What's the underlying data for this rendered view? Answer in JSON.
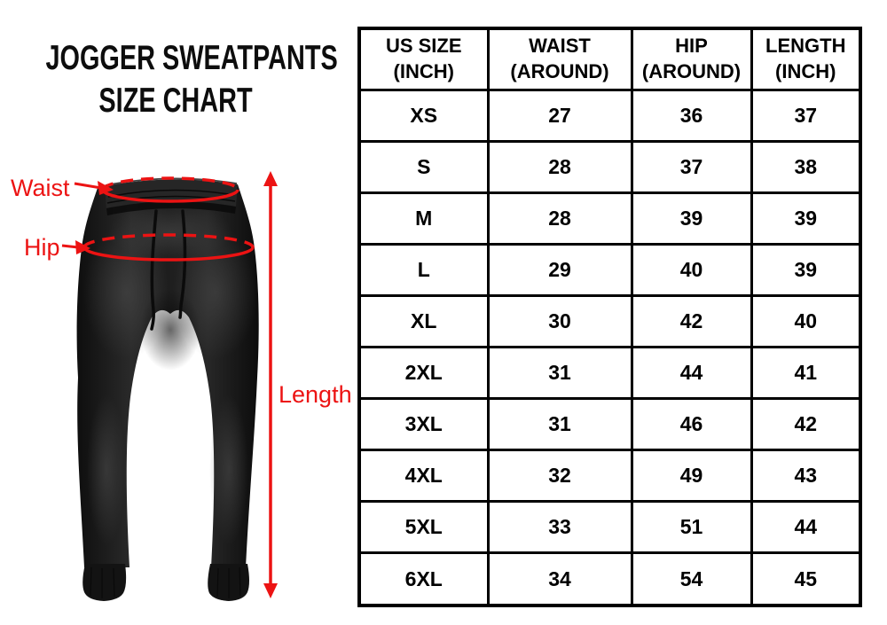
{
  "title": {
    "line1": "JOGGER SWEATPANTS",
    "line2": "SIZE CHART"
  },
  "annotations": {
    "waist_label": "Waist",
    "hip_label": "Hip",
    "length_label": "Length",
    "accent_color": "#ec1313"
  },
  "table": {
    "headers": [
      {
        "line1": "US SIZE",
        "line2": "(INCH)"
      },
      {
        "line1": "WAIST",
        "line2": "(AROUND)"
      },
      {
        "line1": "HIP",
        "line2": "(AROUND)"
      },
      {
        "line1": "LENGTH",
        "line2": "(INCH)"
      }
    ],
    "rows": [
      {
        "size": "XS",
        "waist": "27",
        "hip": "36",
        "length": "37"
      },
      {
        "size": "S",
        "waist": "28",
        "hip": "37",
        "length": "38"
      },
      {
        "size": "M",
        "waist": "28",
        "hip": "39",
        "length": "39"
      },
      {
        "size": "L",
        "waist": "29",
        "hip": "40",
        "length": "39"
      },
      {
        "size": "XL",
        "waist": "30",
        "hip": "42",
        "length": "40"
      },
      {
        "size": "2XL",
        "waist": "31",
        "hip": "44",
        "length": "41"
      },
      {
        "size": "3XL",
        "waist": "31",
        "hip": "46",
        "length": "42"
      },
      {
        "size": "4XL",
        "waist": "32",
        "hip": "49",
        "length": "43"
      },
      {
        "size": "5XL",
        "waist": "33",
        "hip": "51",
        "length": "44"
      },
      {
        "size": "6XL",
        "waist": "34",
        "hip": "54",
        "length": "45"
      }
    ]
  },
  "chart_data": {
    "type": "table",
    "title": "JOGGER SWEATPANTS SIZE CHART",
    "columns": [
      "US SIZE (INCH)",
      "WAIST (AROUND)",
      "HIP (AROUND)",
      "LENGTH (INCH)"
    ],
    "rows": [
      [
        "XS",
        27,
        36,
        37
      ],
      [
        "S",
        28,
        37,
        38
      ],
      [
        "M",
        28,
        39,
        39
      ],
      [
        "L",
        29,
        40,
        39
      ],
      [
        "XL",
        30,
        42,
        40
      ],
      [
        "2XL",
        31,
        44,
        41
      ],
      [
        "3XL",
        31,
        46,
        42
      ],
      [
        "4XL",
        32,
        49,
        43
      ],
      [
        "5XL",
        33,
        51,
        44
      ],
      [
        "6XL",
        34,
        54,
        45
      ]
    ]
  }
}
